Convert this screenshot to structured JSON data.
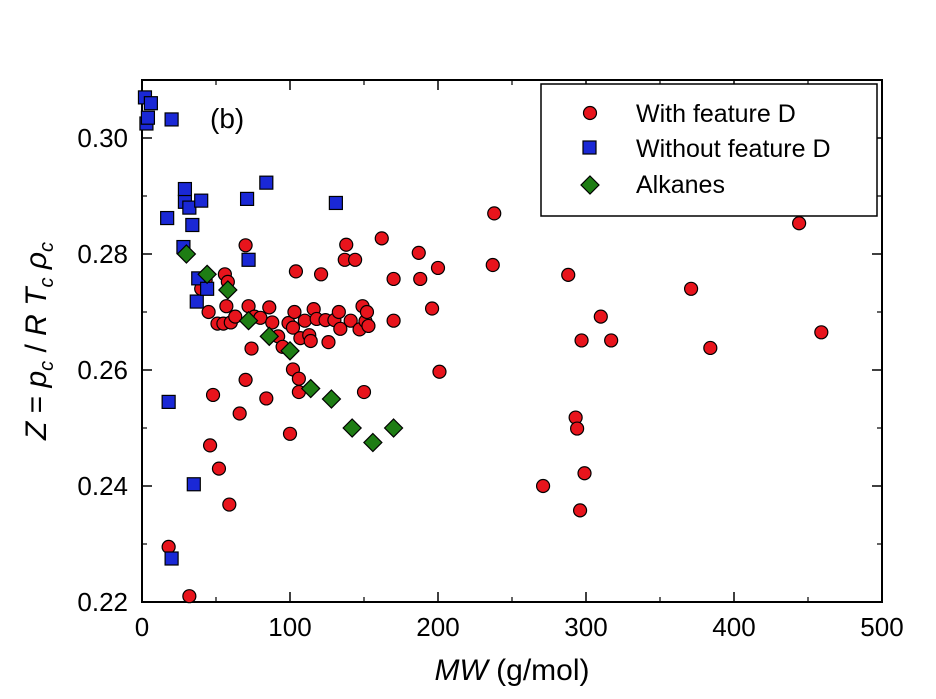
{
  "chart_data": {
    "type": "scatter",
    "panel_label": "(b)",
    "xlabel_italic": "MW",
    "xlabel_rest": " (g/mol)",
    "ylabel": "Z = p_c / R T_c ρ_c",
    "ylabel_parts": {
      "z": "Z",
      "eq": " = ",
      "p": "p",
      "c": "c",
      "slash": " / ",
      "r": "R",
      "t": "T",
      "rho": "ρ"
    },
    "xlim": [
      0,
      500
    ],
    "ylim": [
      0.22,
      0.31
    ],
    "x_ticks": [
      0,
      100,
      200,
      300,
      400,
      500
    ],
    "x_tick_labels": [
      "0",
      "100",
      "200",
      "300",
      "400",
      "500"
    ],
    "y_ticks": [
      0.22,
      0.24,
      0.26,
      0.28,
      0.3
    ],
    "y_tick_labels": [
      "0.22",
      "0.24",
      "0.26",
      "0.28",
      "0.30"
    ],
    "legend_position": "top-right",
    "series": [
      {
        "name": "With feature D",
        "marker": "circle",
        "color": "#e8141c",
        "points": [
          [
            18,
            0.2295
          ],
          [
            32,
            0.221
          ],
          [
            40,
            0.274
          ],
          [
            43,
            0.2755
          ],
          [
            45,
            0.27
          ],
          [
            46,
            0.247
          ],
          [
            48,
            0.2557
          ],
          [
            51,
            0.268
          ],
          [
            52,
            0.243
          ],
          [
            55,
            0.268
          ],
          [
            56,
            0.2765
          ],
          [
            57,
            0.271
          ],
          [
            58,
            0.2752
          ],
          [
            59,
            0.2368
          ],
          [
            60,
            0.2682
          ],
          [
            63,
            0.2692
          ],
          [
            66,
            0.2525
          ],
          [
            70,
            0.2815
          ],
          [
            70,
            0.2583
          ],
          [
            72,
            0.271
          ],
          [
            74,
            0.2637
          ],
          [
            76,
            0.2692
          ],
          [
            80,
            0.269
          ],
          [
            84,
            0.2551
          ],
          [
            86,
            0.2708
          ],
          [
            88,
            0.2682
          ],
          [
            92,
            0.2658
          ],
          [
            95,
            0.264
          ],
          [
            99,
            0.2681
          ],
          [
            100,
            0.249
          ],
          [
            102,
            0.2673
          ],
          [
            102,
            0.2601
          ],
          [
            103,
            0.27
          ],
          [
            104,
            0.277
          ],
          [
            106,
            0.2585
          ],
          [
            106,
            0.2562
          ],
          [
            107,
            0.2655
          ],
          [
            110,
            0.2685
          ],
          [
            113,
            0.266
          ],
          [
            114,
            0.265
          ],
          [
            116,
            0.2705
          ],
          [
            118,
            0.2688
          ],
          [
            121,
            0.2765
          ],
          [
            124,
            0.2686
          ],
          [
            126,
            0.2648
          ],
          [
            130,
            0.2686
          ],
          [
            133,
            0.27
          ],
          [
            134,
            0.2671
          ],
          [
            137,
            0.279
          ],
          [
            138,
            0.2816
          ],
          [
            141,
            0.2685
          ],
          [
            144,
            0.279
          ],
          [
            147,
            0.267
          ],
          [
            149,
            0.271
          ],
          [
            150,
            0.2562
          ],
          [
            151,
            0.2684
          ],
          [
            152,
            0.27
          ],
          [
            153,
            0.2676
          ],
          [
            162,
            0.2827
          ],
          [
            170,
            0.2757
          ],
          [
            170,
            0.2685
          ],
          [
            187,
            0.2802
          ],
          [
            188,
            0.2757
          ],
          [
            196,
            0.2706
          ],
          [
            200,
            0.2776
          ],
          [
            201,
            0.2597
          ],
          [
            237,
            0.2781
          ],
          [
            238,
            0.287
          ],
          [
            271,
            0.24
          ],
          [
            288,
            0.2764
          ],
          [
            293,
            0.2518
          ],
          [
            294,
            0.2499
          ],
          [
            296,
            0.2358
          ],
          [
            297,
            0.2651
          ],
          [
            299,
            0.2422
          ],
          [
            310,
            0.2692
          ],
          [
            317,
            0.2651
          ],
          [
            371,
            0.274
          ],
          [
            384,
            0.2638
          ],
          [
            444,
            0.2853
          ],
          [
            459,
            0.2665
          ]
        ]
      },
      {
        "name": "Without feature D",
        "marker": "square",
        "color": "#1a28d6",
        "points": [
          [
            2,
            0.307
          ],
          [
            3,
            0.3025
          ],
          [
            4,
            0.3035
          ],
          [
            6,
            0.306
          ],
          [
            17,
            0.2862
          ],
          [
            18,
            0.2545
          ],
          [
            20,
            0.2275
          ],
          [
            20,
            0.3032
          ],
          [
            28,
            0.2812
          ],
          [
            29,
            0.289
          ],
          [
            29,
            0.2912
          ],
          [
            32,
            0.288
          ],
          [
            34,
            0.285
          ],
          [
            35,
            0.2403
          ],
          [
            37,
            0.2718
          ],
          [
            38,
            0.2758
          ],
          [
            40,
            0.2892
          ],
          [
            44,
            0.274
          ],
          [
            71,
            0.2895
          ],
          [
            72,
            0.279
          ],
          [
            84,
            0.2923
          ],
          [
            131,
            0.2888
          ]
        ]
      },
      {
        "name": "Alkanes",
        "marker": "diamond",
        "color": "#1e7d14",
        "points": [
          [
            30,
            0.28
          ],
          [
            44,
            0.2765
          ],
          [
            58,
            0.2738
          ],
          [
            72,
            0.2685
          ],
          [
            86,
            0.2658
          ],
          [
            100,
            0.2633
          ],
          [
            114,
            0.2568
          ],
          [
            128,
            0.255
          ],
          [
            142,
            0.25
          ],
          [
            156,
            0.2475
          ],
          [
            170,
            0.25
          ]
        ]
      }
    ]
  }
}
